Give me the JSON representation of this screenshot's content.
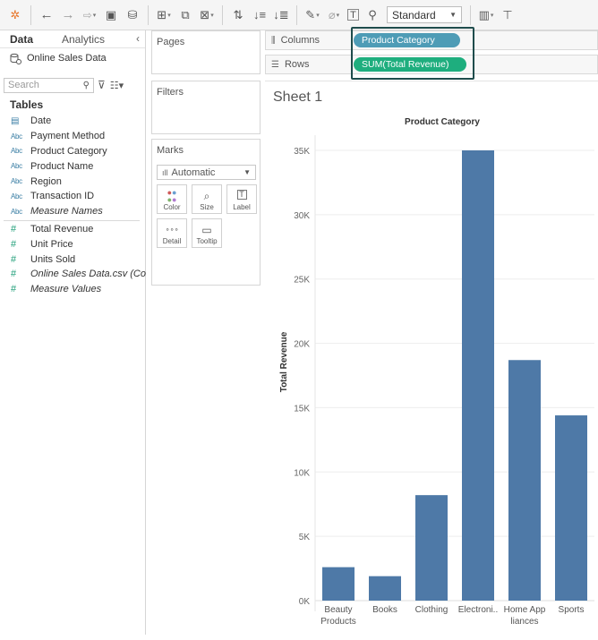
{
  "toolbar": {
    "view_mode": "Standard",
    "icons": [
      "tableau-logo-icon",
      "undo-icon",
      "redo-icon",
      "replay-icon",
      "save-icon",
      "new-datasource-icon",
      "new-worksheet-icon",
      "duplicate-icon",
      "clear-icon",
      "swap-icon",
      "sort-asc-icon",
      "sort-desc-icon",
      "highlight-icon",
      "group-icon",
      "labels-icon",
      "pin-icon",
      "show-me-icon",
      "presentation-icon"
    ]
  },
  "data_pane": {
    "tabs": [
      "Data",
      "Analytics"
    ],
    "datasource": "Online Sales Data",
    "search_placeholder": "Search",
    "tables_heading": "Tables",
    "dimensions": [
      {
        "icon": "calendar",
        "label": "Date"
      },
      {
        "icon": "Abc",
        "label": "Payment Method"
      },
      {
        "icon": "Abc",
        "label": "Product Category"
      },
      {
        "icon": "Abc",
        "label": "Product Name"
      },
      {
        "icon": "Abc",
        "label": "Region"
      },
      {
        "icon": "Abc",
        "label": "Transaction ID"
      },
      {
        "icon": "Abc",
        "label": "Measure Names"
      }
    ],
    "measures": [
      {
        "icon": "#",
        "label": "Total Revenue"
      },
      {
        "icon": "#",
        "label": "Unit Price"
      },
      {
        "icon": "#",
        "label": "Units Sold"
      },
      {
        "icon": "#",
        "label": "Online Sales Data.csv (Co..."
      },
      {
        "icon": "#",
        "label": "Measure Values"
      }
    ]
  },
  "cards": {
    "pages": "Pages",
    "filters": "Filters",
    "marks": "Marks",
    "mark_type": "Automatic",
    "mark_buttons": [
      "Color",
      "Size",
      "Label",
      "Detail",
      "Tooltip"
    ]
  },
  "shelves": {
    "columns_label": "Columns",
    "rows_label": "Rows",
    "columns_pill": "Product Category",
    "rows_pill": "SUM(Total Revenue)"
  },
  "sheet": {
    "title": "Sheet 1"
  },
  "chart_data": {
    "type": "bar",
    "title": "Product Category",
    "xlabel": "",
    "ylabel": "Total Revenue",
    "categories": [
      "Beauty Products",
      "Books",
      "Clothing",
      "Electroni..",
      "Home Appliances",
      "Sports"
    ],
    "category_lines": [
      [
        "Beauty",
        "Products"
      ],
      [
        "Books"
      ],
      [
        "Clothing"
      ],
      [
        "Electroni.."
      ],
      [
        "Home App",
        "liances"
      ],
      [
        "Sports"
      ]
    ],
    "values": [
      2600,
      1900,
      8200,
      35000,
      18700,
      14400
    ],
    "ylim": [
      0,
      36000
    ],
    "yticks": [
      0,
      5000,
      10000,
      15000,
      20000,
      25000,
      30000,
      35000
    ],
    "ytick_labels": [
      "0K",
      "5K",
      "10K",
      "15K",
      "20K",
      "25K",
      "30K",
      "35K"
    ],
    "grid": true,
    "bar_color": "#4e79a7"
  }
}
